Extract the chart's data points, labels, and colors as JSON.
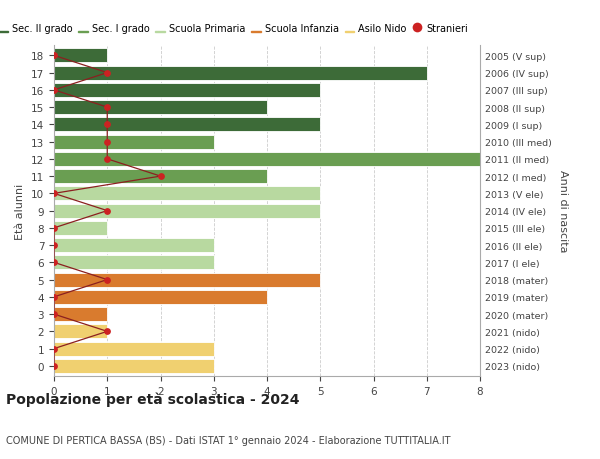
{
  "ages": [
    18,
    17,
    16,
    15,
    14,
    13,
    12,
    11,
    10,
    9,
    8,
    7,
    6,
    5,
    4,
    3,
    2,
    1,
    0
  ],
  "right_labels": [
    "2005 (V sup)",
    "2006 (IV sup)",
    "2007 (III sup)",
    "2008 (II sup)",
    "2009 (I sup)",
    "2010 (III med)",
    "2011 (II med)",
    "2012 (I med)",
    "2013 (V ele)",
    "2014 (IV ele)",
    "2015 (III ele)",
    "2016 (II ele)",
    "2017 (I ele)",
    "2018 (mater)",
    "2019 (mater)",
    "2020 (mater)",
    "2021 (nido)",
    "2022 (nido)",
    "2023 (nido)"
  ],
  "bar_values": [
    1,
    7,
    5,
    4,
    5,
    3,
    8,
    4,
    5,
    5,
    1,
    3,
    3,
    5,
    4,
    1,
    1,
    3,
    3
  ],
  "bar_colors": [
    "#3d6b38",
    "#3d6b38",
    "#3d6b38",
    "#3d6b38",
    "#3d6b38",
    "#6a9e52",
    "#6a9e52",
    "#6a9e52",
    "#b8d9a0",
    "#b8d9a0",
    "#b8d9a0",
    "#b8d9a0",
    "#b8d9a0",
    "#d97b2e",
    "#d97b2e",
    "#d97b2e",
    "#f0d070",
    "#f0d070",
    "#f0d070"
  ],
  "stranieri_values": [
    0,
    1,
    0,
    1,
    1,
    1,
    1,
    2,
    0,
    1,
    0,
    0,
    0,
    1,
    0,
    0,
    1,
    0,
    0
  ],
  "legend_labels": [
    "Sec. II grado",
    "Sec. I grado",
    "Scuola Primaria",
    "Scuola Infanzia",
    "Asilo Nido",
    "Stranieri"
  ],
  "legend_colors": [
    "#3d6b38",
    "#6a9e52",
    "#b8d9a0",
    "#d97b2e",
    "#f0d070",
    "#cc2222"
  ],
  "title": "Popolazione per età scolastica - 2024",
  "subtitle": "COMUNE DI PERTICA BASSA (BS) - Dati ISTAT 1° gennaio 2024 - Elaborazione TUTTITALIA.IT",
  "ylabel_left": "Età alunni",
  "ylabel_right": "Anni di nascita",
  "xlim": [
    0,
    8
  ],
  "background_color": "#ffffff",
  "grid_color": "#cccccc",
  "stranieri_line_color": "#8b2020",
  "stranieri_dot_color": "#cc2222"
}
